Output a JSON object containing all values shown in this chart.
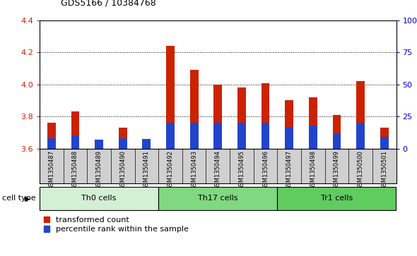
{
  "title": "GDS5166 / 10384768",
  "samples": [
    "GSM1350487",
    "GSM1350488",
    "GSM1350489",
    "GSM1350490",
    "GSM1350491",
    "GSM1350492",
    "GSM1350493",
    "GSM1350494",
    "GSM1350495",
    "GSM1350496",
    "GSM1350497",
    "GSM1350498",
    "GSM1350499",
    "GSM1350500",
    "GSM1350501"
  ],
  "transformed_count": [
    3.76,
    3.83,
    3.65,
    3.73,
    3.66,
    4.24,
    4.09,
    4.0,
    3.98,
    4.01,
    3.9,
    3.92,
    3.81,
    4.02,
    3.73
  ],
  "percentile_rank_pct": [
    8,
    10,
    7,
    8,
    7,
    20,
    20,
    20,
    20,
    20,
    17,
    18,
    12,
    20,
    9
  ],
  "cell_types": [
    {
      "label": "Th0 cells",
      "start": 0,
      "end": 5,
      "color": "#d4f0d4"
    },
    {
      "label": "Th17 cells",
      "start": 5,
      "end": 10,
      "color": "#80d880"
    },
    {
      "label": "Tr1 cells",
      "start": 10,
      "end": 15,
      "color": "#60cc60"
    }
  ],
  "ylim_left": [
    3.6,
    4.4
  ],
  "ylim_right": [
    0,
    100
  ],
  "bar_color_red": "#cc2200",
  "bar_color_blue": "#2244cc",
  "bar_width": 0.35,
  "plot_bg_color": "#ffffff",
  "tick_bg_color": "#d0d0d0",
  "ylabel_left_color": "#cc2200",
  "ylabel_right_color": "#0000cc",
  "yticks_left": [
    3.6,
    3.8,
    4.0,
    4.2,
    4.4
  ],
  "yticks_right": [
    0,
    25,
    50,
    75,
    100
  ],
  "ytick_labels_right": [
    "0",
    "25",
    "50",
    "75",
    "100%"
  ],
  "legend_red_label": "transformed count",
  "legend_blue_label": "percentile rank within the sample",
  "cell_type_label": "cell type"
}
